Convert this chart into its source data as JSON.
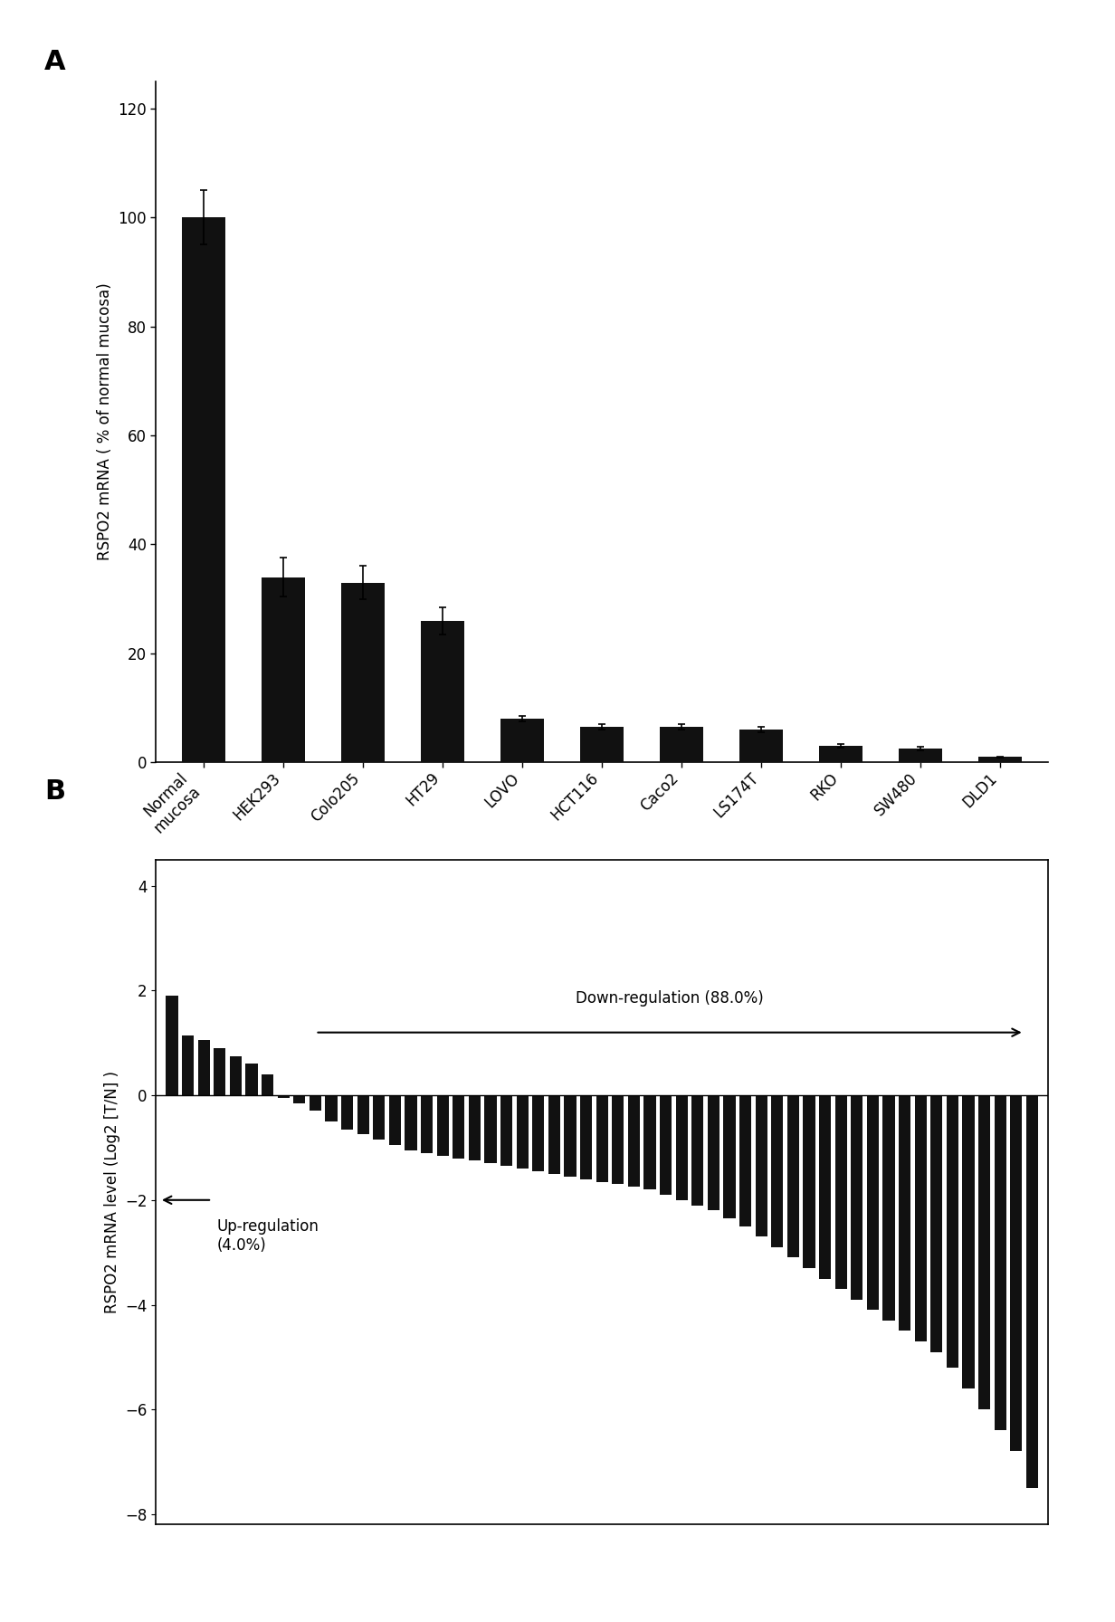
{
  "panel_A": {
    "categories": [
      "Normal\nmucosa",
      "HEK293",
      "Colo205",
      "HT29",
      "LOVO",
      "HCT116",
      "Caco2",
      "LS174T",
      "RKO",
      "SW480",
      "DLD1"
    ],
    "values": [
      100,
      34,
      33,
      26,
      8,
      6.5,
      6.5,
      6,
      3,
      2.5,
      1
    ],
    "errors": [
      5,
      3.5,
      3,
      2.5,
      0.5,
      0.5,
      0.5,
      0.5,
      0.3,
      0.3,
      0.1
    ],
    "ylabel": "RSPO2 mRNA ( % of normal mucosa)",
    "ylim": [
      0,
      125
    ],
    "yticks": [
      0,
      20,
      40,
      60,
      80,
      100,
      120
    ],
    "bar_color": "#111111",
    "bar_width": 0.55,
    "label": "A"
  },
  "panel_B": {
    "ylabel": "RSPO2 mRNA level (Log2 [T/N] )",
    "ylim": [
      -8.2,
      4.5
    ],
    "yticks": [
      -8,
      -6,
      -4,
      -2,
      0,
      2,
      4
    ],
    "bar_color": "#111111",
    "label": "B",
    "down_regulation_text": "Down-regulation (88.0%)",
    "up_regulation_text": "Up-regulation\n(4.0%)",
    "values": [
      1.9,
      1.15,
      1.05,
      0.9,
      0.75,
      0.6,
      0.4,
      -0.05,
      -0.15,
      -0.3,
      -0.5,
      -0.65,
      -0.75,
      -0.85,
      -0.95,
      -1.05,
      -1.1,
      -1.15,
      -1.2,
      -1.25,
      -1.3,
      -1.35,
      -1.4,
      -1.45,
      -1.5,
      -1.55,
      -1.6,
      -1.65,
      -1.7,
      -1.75,
      -1.8,
      -1.9,
      -2.0,
      -2.1,
      -2.2,
      -2.35,
      -2.5,
      -2.7,
      -2.9,
      -3.1,
      -3.3,
      -3.5,
      -3.7,
      -3.9,
      -4.1,
      -4.3,
      -4.5,
      -4.7,
      -4.9,
      -5.2,
      -5.6,
      -6.0,
      -6.4,
      -6.8,
      -7.5
    ]
  },
  "figure_bg": "#ffffff",
  "text_color": "#000000"
}
